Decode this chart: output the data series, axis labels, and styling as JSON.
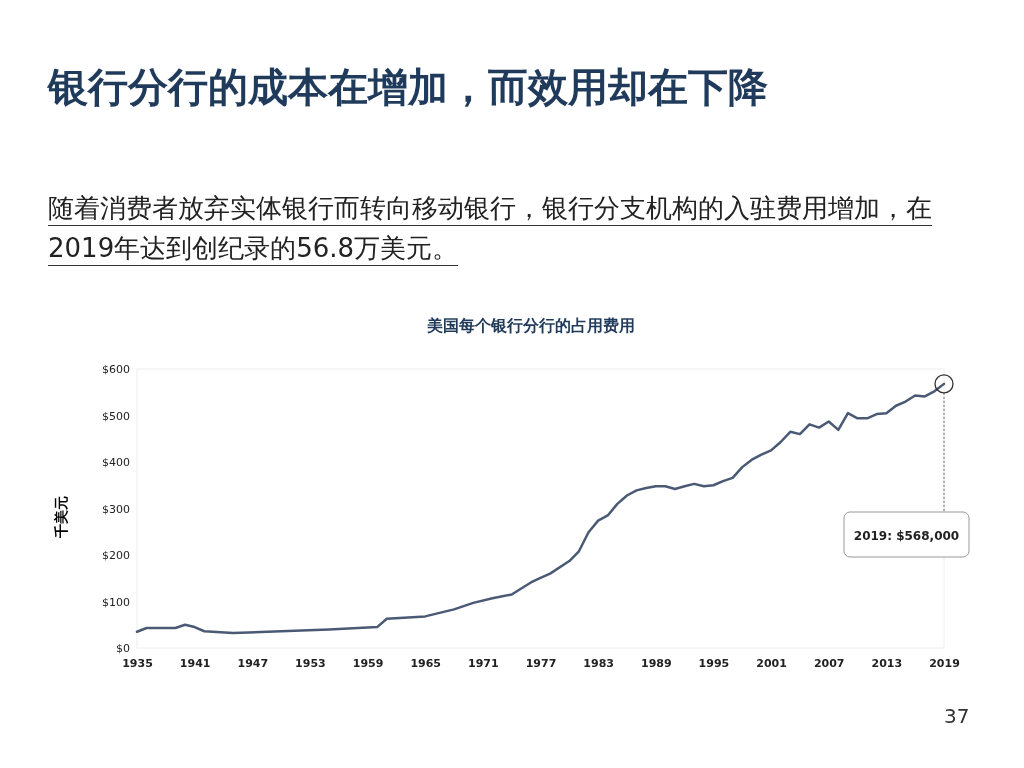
{
  "chart_data": {
    "type": "line",
    "title": "美国每个银行分行的占用费用",
    "ylabel": "千美元",
    "annotations": [
      "银行分行的成本在增加，而效用却在下降",
      "随着消费者放弃实体银行而转向移动银行，银行分支机构的入驻费用增加，在2019年达到创纪录的56.8万美元。",
      "37",
      "2019: $568,000"
    ],
    "x": [
      1935,
      1936,
      1939,
      1940,
      1941,
      1942,
      1945,
      1950,
      1955,
      1960,
      1961,
      1965,
      1968,
      1970,
      1972,
      1974,
      1976,
      1977,
      1978,
      1980,
      1981,
      1982,
      1983,
      1984,
      1985,
      1986,
      1987,
      1988,
      1989,
      1990,
      1991,
      1992,
      1993,
      1994,
      1995,
      1996,
      1997,
      1998,
      1999,
      2000,
      2001,
      2002,
      2003,
      2004,
      2005,
      2006,
      2007,
      2008,
      2009,
      2010,
      2011,
      2012,
      2013,
      2014,
      2015,
      2016,
      2017,
      2018,
      2019
    ],
    "series": [
      {
        "color": "#4a5a75",
        "values": [
          35,
          43,
          43,
          50,
          45,
          36,
          32,
          36,
          40,
          45,
          63,
          68,
          83,
          97,
          107,
          115,
          141,
          151,
          160,
          187,
          208,
          249,
          274,
          285,
          310,
          328,
          339,
          344,
          348,
          348,
          342,
          348,
          353,
          348,
          350,
          359,
          366,
          389,
          405,
          416,
          425,
          443,
          465,
          460,
          481,
          474,
          487,
          469,
          505,
          494,
          494,
          503,
          505,
          521,
          530,
          543,
          541,
          552,
          568
        ]
      }
    ],
    "xlim": [
      1935,
      2019
    ],
    "xticks": [
      1935,
      1941,
      1947,
      1953,
      1959,
      1965,
      1971,
      1977,
      1983,
      1989,
      1995,
      2001,
      2007,
      2013,
      2019
    ],
    "ylim": [
      0,
      600
    ],
    "yticks": [
      {
        "value": 0,
        "label": "$0"
      },
      {
        "value": 100,
        "label": "$100"
      },
      {
        "value": 200,
        "label": "$200"
      },
      {
        "value": 300,
        "label": "$300"
      },
      {
        "value": 400,
        "label": "$400"
      },
      {
        "value": 500,
        "label": "$500"
      },
      {
        "value": 600,
        "label": "$600"
      }
    ],
    "marker": "none",
    "line_style": "solid",
    "grid": false
  }
}
